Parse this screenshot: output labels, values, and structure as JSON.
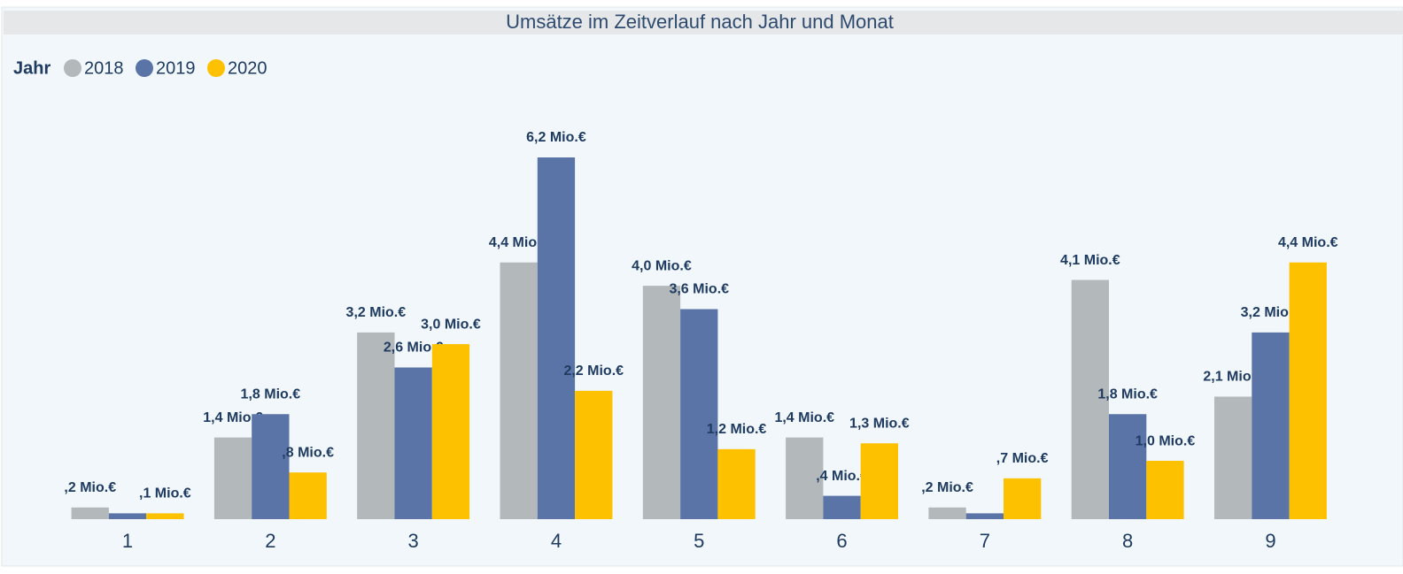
{
  "chart_data": {
    "type": "bar",
    "title": "Umsätze im Zeitverlauf nach Jahr und Monat",
    "legend_title": "Jahr",
    "categories": [
      "1",
      "2",
      "3",
      "4",
      "5",
      "6",
      "7",
      "8",
      "9"
    ],
    "series": [
      {
        "name": "2018",
        "color": "#b3b8bb",
        "values": [
          0.2,
          1.4,
          3.2,
          4.4,
          4.0,
          1.4,
          0.2,
          4.1,
          2.1
        ],
        "value_labels": [
          ",2 Mio.€",
          "1,4 Mio.€",
          "3,2 Mio.€",
          "4,4 Mio.€",
          "4,0 Mio.€",
          "1,4 Mio.€",
          ",2 Mio.€",
          "4,1 Mio.€",
          "2,1 Mio.€"
        ]
      },
      {
        "name": "2019",
        "color": "#5a74a8",
        "values": [
          0.1,
          1.8,
          2.6,
          6.2,
          3.6,
          0.4,
          0.1,
          1.8,
          3.2
        ],
        "value_labels": [
          null,
          "1,8 Mio.€",
          "2,6 Mio.€",
          "6,2 Mio.€",
          "3,6 Mio.€",
          ",4 Mio.€",
          null,
          "1,8 Mio.€",
          "3,2 Mio.€"
        ]
      },
      {
        "name": "2020",
        "color": "#fdc100",
        "values": [
          0.1,
          0.8,
          3.0,
          2.2,
          1.2,
          1.3,
          0.7,
          1.0,
          4.4
        ],
        "value_labels": [
          ",1 Mio.€",
          ",8 Mio.€",
          "3,0 Mio.€",
          "2,2 Mio.€",
          "1,2 Mio.€",
          "1,3 Mio.€",
          ",7 Mio.€",
          "1,0 Mio.€",
          "4,4 Mio.€"
        ]
      }
    ]
  }
}
